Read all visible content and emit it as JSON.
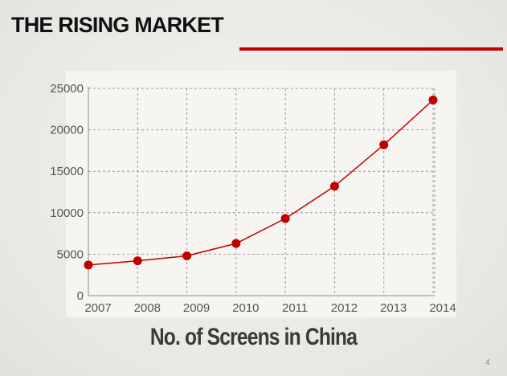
{
  "slide": {
    "title": "THE RISING MARKET",
    "caption": "No. of Screens in China",
    "page_number": "4",
    "accent_color": "#c00000"
  },
  "chart_data": {
    "type": "line",
    "title": "",
    "xlabel": "",
    "ylabel": "",
    "x": [
      "2007",
      "2008",
      "2009",
      "2010",
      "2011",
      "2012",
      "2013",
      "2014"
    ],
    "series": [
      {
        "values": [
          3700,
          4200,
          4800,
          6300,
          9300,
          13200,
          18200,
          23600
        ],
        "color": "#c00000"
      }
    ],
    "ylim": [
      0,
      25000
    ],
    "yticks": [
      0,
      5000,
      10000,
      15000,
      20000,
      25000
    ],
    "grid": true,
    "grid_style": "dashed",
    "legend": "none"
  }
}
